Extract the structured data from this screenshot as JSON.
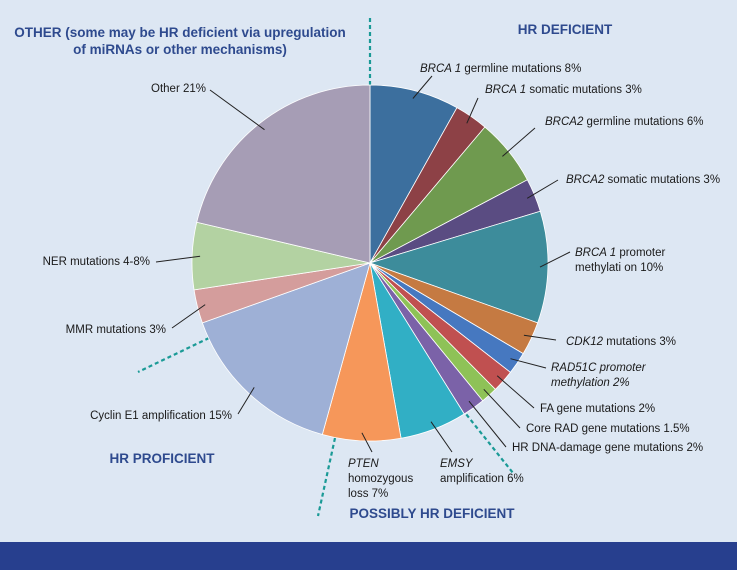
{
  "chart_data": {
    "type": "pie",
    "title": "",
    "start_angle_deg": 0,
    "direction": "clockwise",
    "slices": [
      {
        "label_parts": [
          {
            "t": "BRCA 1",
            "i": true
          },
          {
            "t": " germline mutations 8%",
            "i": false
          }
        ],
        "value": 8,
        "color": "#3c6f9e"
      },
      {
        "label_parts": [
          {
            "t": "BRCA 1",
            "i": true
          },
          {
            "t": " somatic mutations 3%",
            "i": false
          }
        ],
        "value": 3,
        "color": "#8d4146"
      },
      {
        "label_parts": [
          {
            "t": "BRCA2",
            "i": true
          },
          {
            "t": " germline mutations 6%",
            "i": false
          }
        ],
        "value": 6,
        "color": "#6f9a4f"
      },
      {
        "label_parts": [
          {
            "t": "BRCA2",
            "i": true
          },
          {
            "t": "  somatic mutations 3%",
            "i": false
          }
        ],
        "value": 3,
        "color": "#5a4c82"
      },
      {
        "label_parts": [
          {
            "t": "BRCA 1",
            "i": true
          },
          {
            "t": " promoter",
            "i": false
          },
          {
            "br": true
          },
          {
            "t": "methylati on 10%",
            "i": false
          }
        ],
        "value": 10,
        "color": "#3d8c9b"
      },
      {
        "label_parts": [
          {
            "t": "CDK12",
            "i": true
          },
          {
            "t": " mutations 3%",
            "i": false
          }
        ],
        "value": 3,
        "color": "#c57a42"
      },
      {
        "label_parts": [
          {
            "t": "RAD51C promoter",
            "i": true
          },
          {
            "br": true
          },
          {
            "t": "methylation 2%",
            "i": true
          }
        ],
        "value": 2,
        "color": "#4678c0"
      },
      {
        "label_parts": [
          {
            "t": "FA gene mutations 2%",
            "i": false
          }
        ],
        "value": 2,
        "color": "#c05050"
      },
      {
        "label_parts": [
          {
            "t": "Core RAD gene mutations 1.5%",
            "i": false
          }
        ],
        "value": 1.5,
        "color": "#8ec257"
      },
      {
        "label_parts": [
          {
            "t": "HR DNA-damage gene mutations 2%",
            "i": false
          }
        ],
        "value": 2,
        "color": "#7b62a8"
      },
      {
        "label_parts": [
          {
            "t": "EMSY",
            "i": true
          },
          {
            "br": true
          },
          {
            "t": "amplification 6%",
            "i": false
          }
        ],
        "value": 6,
        "color": "#31afc5"
      },
      {
        "label_parts": [
          {
            "t": "PTEN",
            "i": true
          },
          {
            "br": true
          },
          {
            "t": "homozygous",
            "i": false
          },
          {
            "br": true
          },
          {
            "t": "loss 7%",
            "i": false
          }
        ],
        "value": 7,
        "color": "#f6975a"
      },
      {
        "label_parts": [
          {
            "t": "Cyclin E1 amplification 15%",
            "i": false
          }
        ],
        "value": 15,
        "color": "#9eb0d6"
      },
      {
        "label_parts": [
          {
            "t": "MMR mutations 3%",
            "i": false
          }
        ],
        "value": 3,
        "color": "#d49d9c"
      },
      {
        "label_parts": [
          {
            "t": "NER mutations 4-8%",
            "i": false
          }
        ],
        "value": 6,
        "color": "#b3d2a2"
      },
      {
        "label_parts": [
          {
            "t": "Other 21%",
            "i": false
          }
        ],
        "value": 21,
        "color": "#a69db5"
      }
    ],
    "group_labels": [
      {
        "lines": [
          "OTHER (some may be HR deficient via upregulation",
          "of miRNAs or other mechanisms)"
        ]
      },
      {
        "lines": [
          "HR DEFICIENT"
        ]
      },
      {
        "lines": [
          "HR PROFICIENT"
        ]
      },
      {
        "lines": [
          "POSSIBLY HR DEFICIENT"
        ]
      }
    ],
    "colors": {
      "background": "#dde7f3",
      "group_label": "#2e4a8e",
      "divider": "#1a9a96",
      "leader": "#222222",
      "bottom_bar": "#273f8e"
    }
  }
}
